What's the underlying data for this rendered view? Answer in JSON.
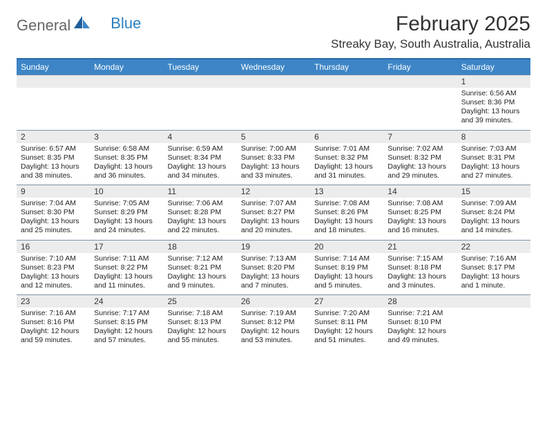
{
  "logo": {
    "general": "General",
    "blue": "Blue"
  },
  "header": {
    "title": "February 2025",
    "location": "Streaky Bay, South Australia, Australia"
  },
  "colors": {
    "header_bar": "#3d85c6",
    "header_border": "#2969aa",
    "row_border": "#7a92aa",
    "daynum_bg": "#ececec",
    "text": "#222222"
  },
  "dayLabels": [
    "Sunday",
    "Monday",
    "Tuesday",
    "Wednesday",
    "Thursday",
    "Friday",
    "Saturday"
  ],
  "weeks": [
    [
      {
        "n": "",
        "sunrise": "",
        "sunset": "",
        "daylight": ""
      },
      {
        "n": "",
        "sunrise": "",
        "sunset": "",
        "daylight": ""
      },
      {
        "n": "",
        "sunrise": "",
        "sunset": "",
        "daylight": ""
      },
      {
        "n": "",
        "sunrise": "",
        "sunset": "",
        "daylight": ""
      },
      {
        "n": "",
        "sunrise": "",
        "sunset": "",
        "daylight": ""
      },
      {
        "n": "",
        "sunrise": "",
        "sunset": "",
        "daylight": ""
      },
      {
        "n": "1",
        "sunrise": "Sunrise: 6:56 AM",
        "sunset": "Sunset: 8:36 PM",
        "daylight": "Daylight: 13 hours and 39 minutes."
      }
    ],
    [
      {
        "n": "2",
        "sunrise": "Sunrise: 6:57 AM",
        "sunset": "Sunset: 8:35 PM",
        "daylight": "Daylight: 13 hours and 38 minutes."
      },
      {
        "n": "3",
        "sunrise": "Sunrise: 6:58 AM",
        "sunset": "Sunset: 8:35 PM",
        "daylight": "Daylight: 13 hours and 36 minutes."
      },
      {
        "n": "4",
        "sunrise": "Sunrise: 6:59 AM",
        "sunset": "Sunset: 8:34 PM",
        "daylight": "Daylight: 13 hours and 34 minutes."
      },
      {
        "n": "5",
        "sunrise": "Sunrise: 7:00 AM",
        "sunset": "Sunset: 8:33 PM",
        "daylight": "Daylight: 13 hours and 33 minutes."
      },
      {
        "n": "6",
        "sunrise": "Sunrise: 7:01 AM",
        "sunset": "Sunset: 8:32 PM",
        "daylight": "Daylight: 13 hours and 31 minutes."
      },
      {
        "n": "7",
        "sunrise": "Sunrise: 7:02 AM",
        "sunset": "Sunset: 8:32 PM",
        "daylight": "Daylight: 13 hours and 29 minutes."
      },
      {
        "n": "8",
        "sunrise": "Sunrise: 7:03 AM",
        "sunset": "Sunset: 8:31 PM",
        "daylight": "Daylight: 13 hours and 27 minutes."
      }
    ],
    [
      {
        "n": "9",
        "sunrise": "Sunrise: 7:04 AM",
        "sunset": "Sunset: 8:30 PM",
        "daylight": "Daylight: 13 hours and 25 minutes."
      },
      {
        "n": "10",
        "sunrise": "Sunrise: 7:05 AM",
        "sunset": "Sunset: 8:29 PM",
        "daylight": "Daylight: 13 hours and 24 minutes."
      },
      {
        "n": "11",
        "sunrise": "Sunrise: 7:06 AM",
        "sunset": "Sunset: 8:28 PM",
        "daylight": "Daylight: 13 hours and 22 minutes."
      },
      {
        "n": "12",
        "sunrise": "Sunrise: 7:07 AM",
        "sunset": "Sunset: 8:27 PM",
        "daylight": "Daylight: 13 hours and 20 minutes."
      },
      {
        "n": "13",
        "sunrise": "Sunrise: 7:08 AM",
        "sunset": "Sunset: 8:26 PM",
        "daylight": "Daylight: 13 hours and 18 minutes."
      },
      {
        "n": "14",
        "sunrise": "Sunrise: 7:08 AM",
        "sunset": "Sunset: 8:25 PM",
        "daylight": "Daylight: 13 hours and 16 minutes."
      },
      {
        "n": "15",
        "sunrise": "Sunrise: 7:09 AM",
        "sunset": "Sunset: 8:24 PM",
        "daylight": "Daylight: 13 hours and 14 minutes."
      }
    ],
    [
      {
        "n": "16",
        "sunrise": "Sunrise: 7:10 AM",
        "sunset": "Sunset: 8:23 PM",
        "daylight": "Daylight: 13 hours and 12 minutes."
      },
      {
        "n": "17",
        "sunrise": "Sunrise: 7:11 AM",
        "sunset": "Sunset: 8:22 PM",
        "daylight": "Daylight: 13 hours and 11 minutes."
      },
      {
        "n": "18",
        "sunrise": "Sunrise: 7:12 AM",
        "sunset": "Sunset: 8:21 PM",
        "daylight": "Daylight: 13 hours and 9 minutes."
      },
      {
        "n": "19",
        "sunrise": "Sunrise: 7:13 AM",
        "sunset": "Sunset: 8:20 PM",
        "daylight": "Daylight: 13 hours and 7 minutes."
      },
      {
        "n": "20",
        "sunrise": "Sunrise: 7:14 AM",
        "sunset": "Sunset: 8:19 PM",
        "daylight": "Daylight: 13 hours and 5 minutes."
      },
      {
        "n": "21",
        "sunrise": "Sunrise: 7:15 AM",
        "sunset": "Sunset: 8:18 PM",
        "daylight": "Daylight: 13 hours and 3 minutes."
      },
      {
        "n": "22",
        "sunrise": "Sunrise: 7:16 AM",
        "sunset": "Sunset: 8:17 PM",
        "daylight": "Daylight: 13 hours and 1 minute."
      }
    ],
    [
      {
        "n": "23",
        "sunrise": "Sunrise: 7:16 AM",
        "sunset": "Sunset: 8:16 PM",
        "daylight": "Daylight: 12 hours and 59 minutes."
      },
      {
        "n": "24",
        "sunrise": "Sunrise: 7:17 AM",
        "sunset": "Sunset: 8:15 PM",
        "daylight": "Daylight: 12 hours and 57 minutes."
      },
      {
        "n": "25",
        "sunrise": "Sunrise: 7:18 AM",
        "sunset": "Sunset: 8:13 PM",
        "daylight": "Daylight: 12 hours and 55 minutes."
      },
      {
        "n": "26",
        "sunrise": "Sunrise: 7:19 AM",
        "sunset": "Sunset: 8:12 PM",
        "daylight": "Daylight: 12 hours and 53 minutes."
      },
      {
        "n": "27",
        "sunrise": "Sunrise: 7:20 AM",
        "sunset": "Sunset: 8:11 PM",
        "daylight": "Daylight: 12 hours and 51 minutes."
      },
      {
        "n": "28",
        "sunrise": "Sunrise: 7:21 AM",
        "sunset": "Sunset: 8:10 PM",
        "daylight": "Daylight: 12 hours and 49 minutes."
      },
      {
        "n": "",
        "sunrise": "",
        "sunset": "",
        "daylight": ""
      }
    ]
  ]
}
